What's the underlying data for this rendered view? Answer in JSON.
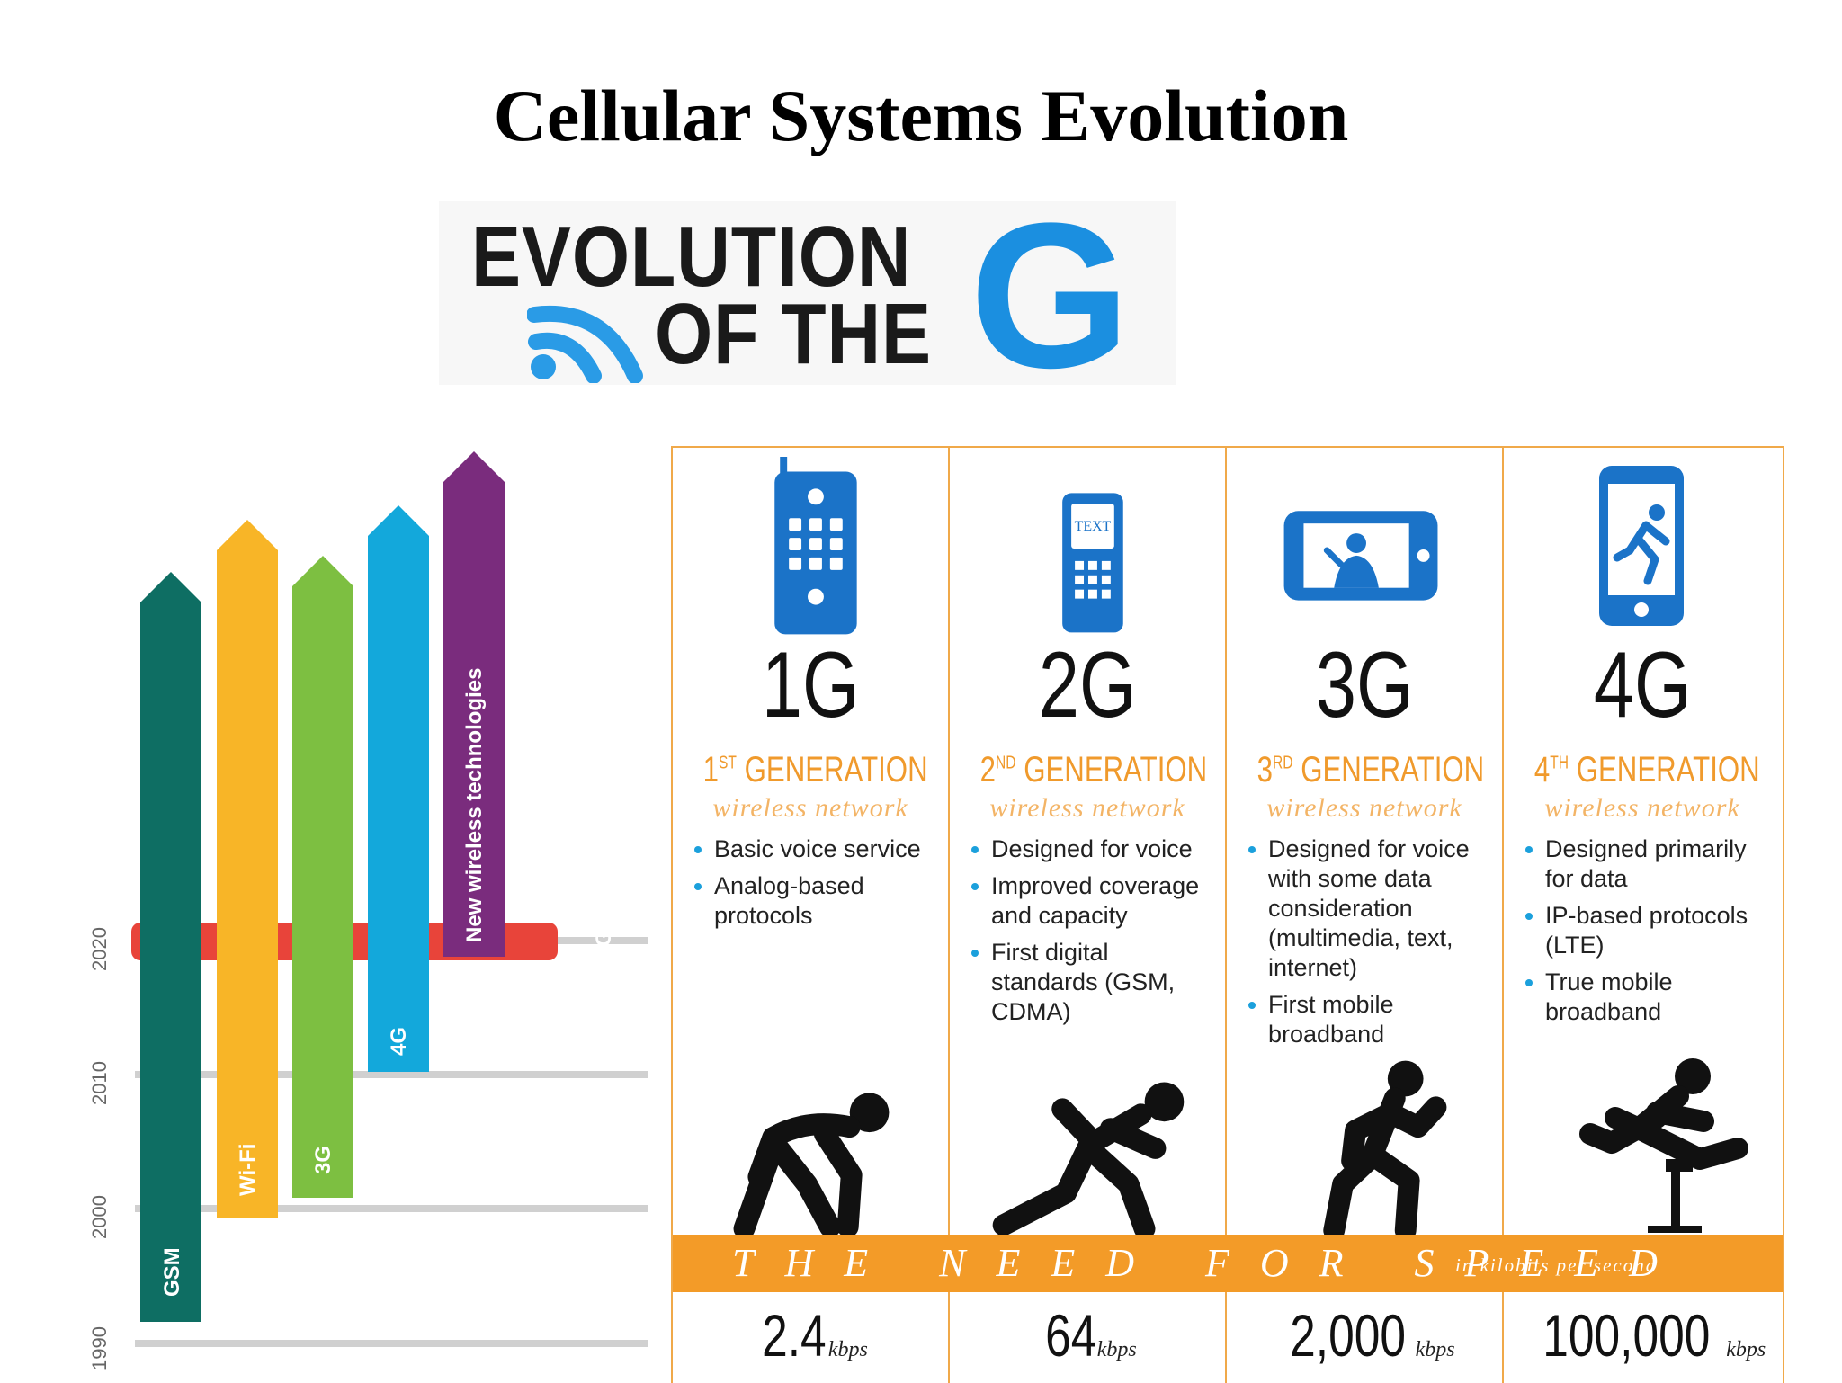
{
  "title": "Cellular Systems Evolution",
  "logo": {
    "line1": "EVOLUTION",
    "line2": "OF THE",
    "big_letter": "G",
    "accent_color": "#1b8fe0"
  },
  "timeline": {
    "years": [
      "2020",
      "2010",
      "2000",
      "1990"
    ],
    "band_label": "5G",
    "bars": [
      {
        "label": "GSM",
        "color": "#0e6e63"
      },
      {
        "label": "Wi-Fi",
        "color": "#f8b527"
      },
      {
        "label": "3G",
        "color": "#7dbf41"
      },
      {
        "label": "4G",
        "color": "#13a8db"
      },
      {
        "label": "New wireless technologies",
        "color": "#7a2c7d"
      }
    ],
    "band_color": "#e8443a"
  },
  "generations": [
    {
      "number": "1G",
      "heading_num": "1",
      "heading_sup": "ST",
      "heading_rest": " GENERATION",
      "sub": "wireless network",
      "bullets": [
        "Basic voice service",
        "Analog-based protocols"
      ],
      "icon": "brick-phone-icon"
    },
    {
      "number": "2G",
      "heading_num": "2",
      "heading_sup": "ND",
      "heading_rest": " GENERATION",
      "sub": "wireless network",
      "bullets": [
        "Designed for voice",
        "Improved coverage and capacity",
        "First digital standards (GSM, CDMA)"
      ],
      "icon": "text-phone-icon",
      "icon_text": "TEXT"
    },
    {
      "number": "3G",
      "heading_num": "3",
      "heading_sup": "RD",
      "heading_rest": " GENERATION",
      "sub": "wireless network",
      "bullets": [
        "Designed for voice with some data consideration (multimedia, text, internet)",
        "First mobile broadband"
      ],
      "icon": "video-phone-icon"
    },
    {
      "number": "4G",
      "heading_num": "4",
      "heading_sup": "TH",
      "heading_rest": " GENERATION",
      "sub": "wireless network",
      "bullets": [
        "Designed primarily for data",
        "IP-based protocols (LTE)",
        "True mobile broadband"
      ],
      "icon": "smartphone-icon"
    }
  ],
  "speed": {
    "heading": "THE NEED FOR SPEED",
    "unit_note": "in kilobits per second",
    "values": [
      "2.4",
      "64",
      "2,000",
      "100,000"
    ],
    "unit": "kbps"
  }
}
